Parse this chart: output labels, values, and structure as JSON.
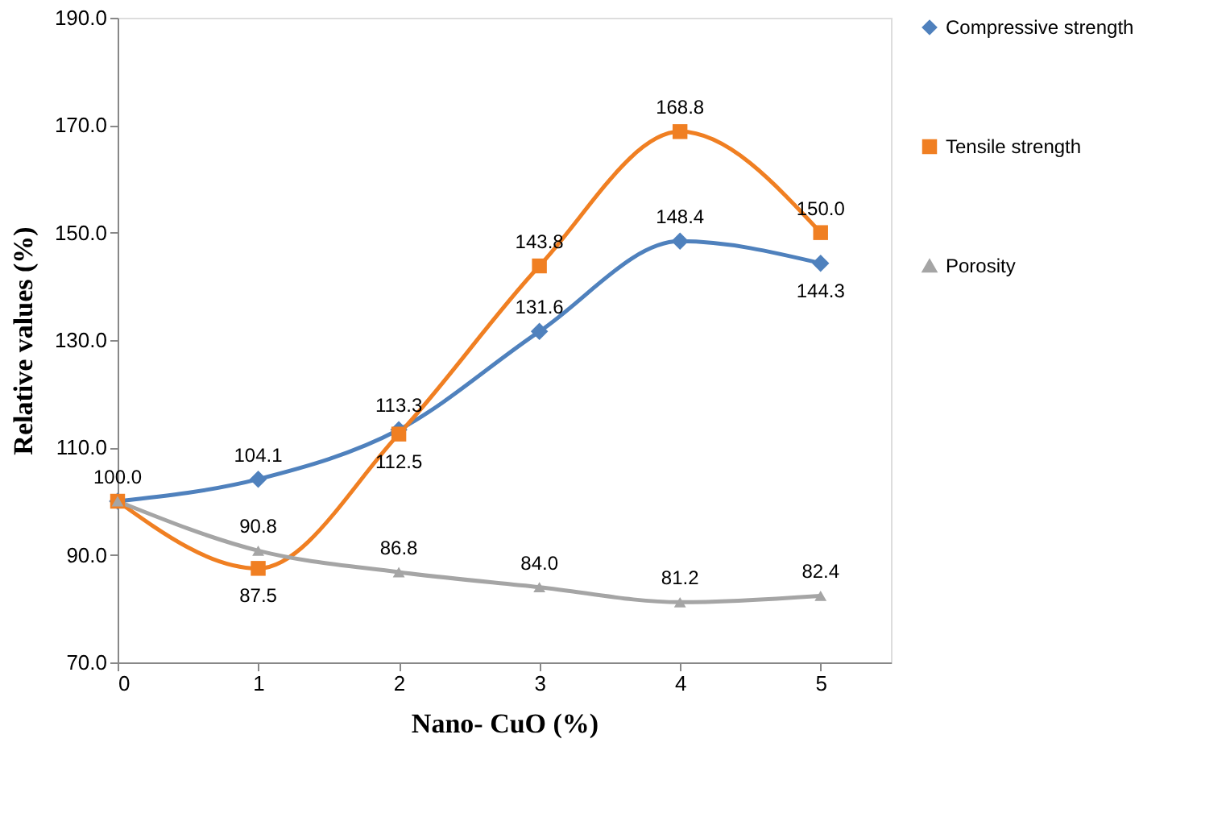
{
  "chart_data": {
    "type": "line",
    "xlabel": "Nano- CuO (%)",
    "ylabel": "Relative  values (%)",
    "x": [
      0,
      1,
      2,
      3,
      4,
      5
    ],
    "xlim": [
      0,
      5.5
    ],
    "xticks": [
      0,
      1,
      2,
      3,
      4,
      5
    ],
    "ylim": [
      70,
      190
    ],
    "yticks": [
      {
        "value": 70,
        "label": "70.0"
      },
      {
        "value": 90,
        "label": "90.0"
      },
      {
        "value": 110,
        "label": "110.0"
      },
      {
        "value": 130,
        "label": "130.0"
      },
      {
        "value": 150,
        "label": "150.0"
      },
      {
        "value": 170,
        "label": "170.0"
      },
      {
        "value": 190,
        "label": "190.0"
      }
    ],
    "grid": false,
    "legend": "right",
    "series": [
      {
        "name": "Compressive strength",
        "color": "#4f81bd",
        "marker": "diamond",
        "values": [
          100,
          104.1,
          113.3,
          131.6,
          148.4,
          144.3
        ],
        "value_labels": [
          "100.0",
          "104.1",
          "113.3",
          "131.6",
          "148.4",
          "144.3"
        ]
      },
      {
        "name": "Tensile strength",
        "color": "#f07f22",
        "marker": "square",
        "values": [
          100,
          87.5,
          112.5,
          143.8,
          168.8,
          150.0
        ],
        "value_labels": [
          null,
          "87.5",
          "112.5",
          "143.8",
          "168.8",
          "150.0"
        ]
      },
      {
        "name": "Porosity",
        "color": "#a5a5a5",
        "marker": "triangle",
        "values": [
          100,
          90.8,
          86.8,
          84.0,
          81.2,
          82.4
        ],
        "value_labels": [
          null,
          "90.8",
          "86.8",
          "84.0",
          "81.2",
          "82.4"
        ]
      }
    ]
  }
}
